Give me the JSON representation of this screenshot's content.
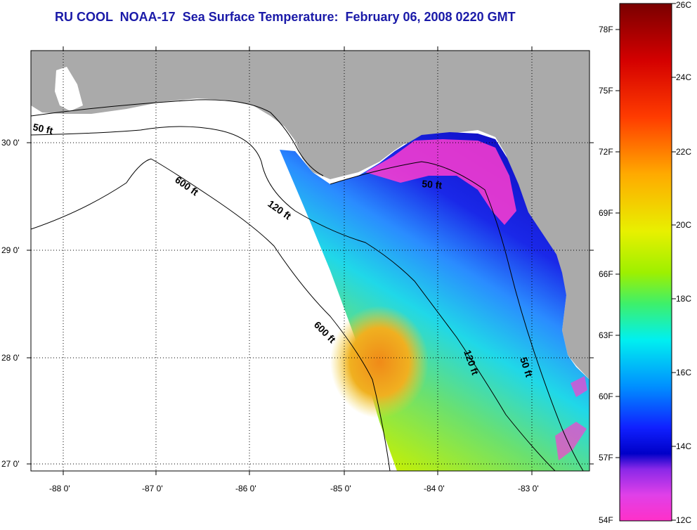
{
  "title": "RU COOL  NOAA-17  Sea Surface Temperature:  February 06, 2008 0220 GMT",
  "lon_labels": [
    "-88 0'",
    "-87 0'",
    "-86 0'",
    "-85 0'",
    "-84 0'",
    "-83 0'"
  ],
  "lat_labels": [
    "30 0'",
    "29 0'",
    "28 0'",
    "27 0'"
  ],
  "contours": [
    {
      "label": "50 ft"
    },
    {
      "label": "600 ft"
    },
    {
      "label": "120 ft"
    },
    {
      "label": "50 ft"
    },
    {
      "label": "600 ft"
    },
    {
      "label": "120 ft"
    },
    {
      "label": "50 ft"
    }
  ],
  "colorbar": {
    "f_labels": [
      "78F",
      "75F",
      "72F",
      "69F",
      "66F",
      "63F",
      "60F",
      "57F",
      "54F"
    ],
    "c_labels": [
      "26C",
      "24C",
      "22C",
      "20C",
      "18C",
      "16C",
      "14C",
      "12C"
    ]
  },
  "colors": {
    "title": "#1a1aa8",
    "land": "#aaaaaa",
    "water": "#ffffff"
  }
}
